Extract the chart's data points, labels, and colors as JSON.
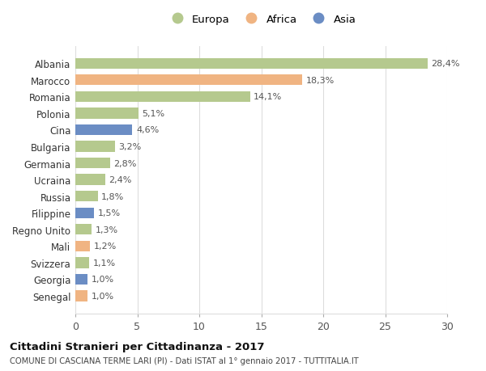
{
  "countries": [
    "Albania",
    "Marocco",
    "Romania",
    "Polonia",
    "Cina",
    "Bulgaria",
    "Germania",
    "Ucraina",
    "Russia",
    "Filippine",
    "Regno Unito",
    "Mali",
    "Svizzera",
    "Georgia",
    "Senegal"
  ],
  "values": [
    28.4,
    18.3,
    14.1,
    5.1,
    4.6,
    3.2,
    2.8,
    2.4,
    1.8,
    1.5,
    1.3,
    1.2,
    1.1,
    1.0,
    1.0
  ],
  "labels": [
    "28,4%",
    "18,3%",
    "14,1%",
    "5,1%",
    "4,6%",
    "3,2%",
    "2,8%",
    "2,4%",
    "1,8%",
    "1,5%",
    "1,3%",
    "1,2%",
    "1,1%",
    "1,0%",
    "1,0%"
  ],
  "continents": [
    "Europa",
    "Africa",
    "Europa",
    "Europa",
    "Asia",
    "Europa",
    "Europa",
    "Europa",
    "Europa",
    "Asia",
    "Europa",
    "Africa",
    "Europa",
    "Asia",
    "Africa"
  ],
  "colors": {
    "Europa": "#b5c98e",
    "Africa": "#f0b482",
    "Asia": "#6b8dc4"
  },
  "title": "Cittadini Stranieri per Cittadinanza - 2017",
  "subtitle": "COMUNE DI CASCIANA TERME LARI (PI) - Dati ISTAT al 1° gennaio 2017 - TUTTITALIA.IT",
  "xlim": [
    0,
    30
  ],
  "xticks": [
    0,
    5,
    10,
    15,
    20,
    25,
    30
  ],
  "background_color": "#ffffff",
  "grid_color": "#dddddd"
}
